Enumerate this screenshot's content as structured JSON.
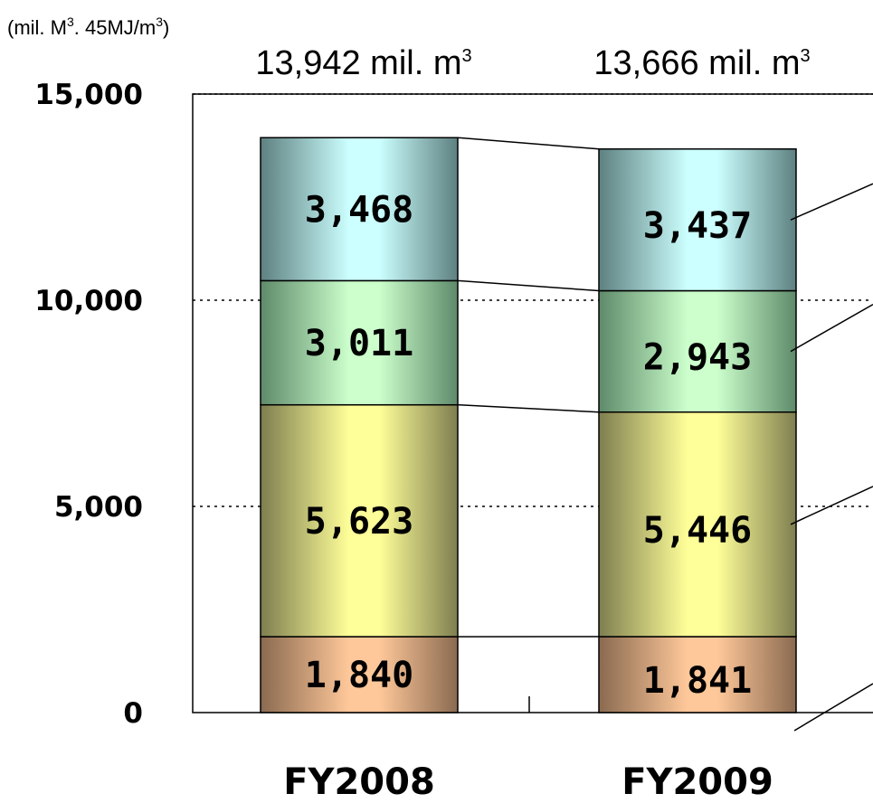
{
  "chart_data": {
    "type": "bar",
    "stacked": true,
    "unit_label": {
      "prefix": "(mil. M",
      "sup1": "3",
      "middle": ". 45MJ/m",
      "sup2": "3",
      "suffix": ")"
    },
    "categories": [
      "FY2008",
      "FY2009"
    ],
    "totals": [
      {
        "value": "13,942 mil. m",
        "sup": "3"
      },
      {
        "value": "13,666 mil. m",
        "sup": "3"
      }
    ],
    "series": [
      {
        "values": [
          1840,
          1841
        ],
        "labels": [
          "1,840",
          "1,841"
        ],
        "color_light": "#ffc89a",
        "color_dark": "#8a6a50"
      },
      {
        "values": [
          5623,
          5446
        ],
        "labels": [
          "5,623",
          "5,446"
        ],
        "color_light": "#ffff99",
        "color_dark": "#7e7e50"
      },
      {
        "values": [
          3011,
          2943
        ],
        "labels": [
          "3,011",
          "2,943"
        ],
        "color_light": "#ccffcc",
        "color_dark": "#5e8a6a"
      },
      {
        "values": [
          3468,
          3437
        ],
        "labels": [
          "3,468",
          "3,437"
        ],
        "color_light": "#ccffff",
        "color_dark": "#5e8080"
      }
    ],
    "yticks": [
      {
        "value": 0,
        "label": "0"
      },
      {
        "value": 5000,
        "label": "5,000"
      },
      {
        "value": 10000,
        "label": "10,000"
      },
      {
        "value": 15000,
        "label": "15,000"
      }
    ],
    "ylim": [
      0,
      15000
    ],
    "grid": "dotted",
    "legend": "callout lines on right (labels cropped)"
  }
}
